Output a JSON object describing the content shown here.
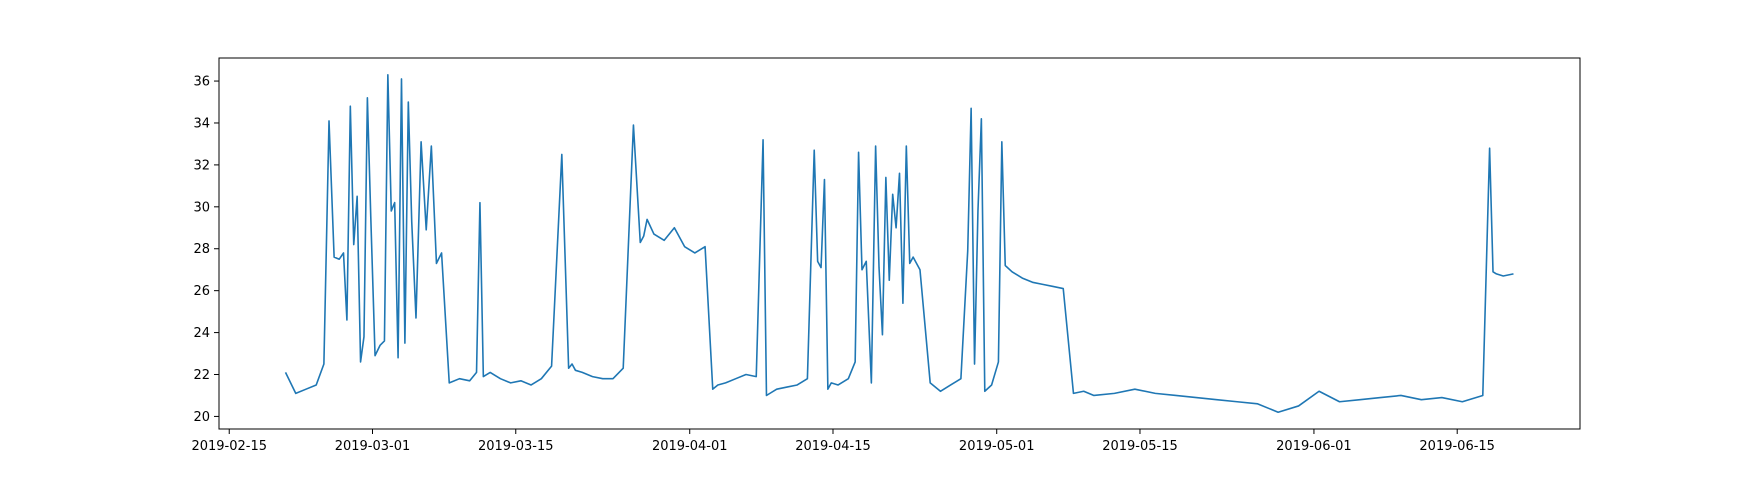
{
  "chart_data": {
    "type": "line",
    "title": "",
    "xlabel": "",
    "ylabel": "",
    "xlim": [
      "2019-02-14",
      "2019-06-27"
    ],
    "ylim": [
      19.4,
      37.1
    ],
    "grid": false,
    "line_color": "#1f77b4",
    "x_ticks": [
      "2019-02-15",
      "2019-03-01",
      "2019-03-15",
      "2019-04-01",
      "2019-04-15",
      "2019-05-01",
      "2019-05-15",
      "2019-06-01",
      "2019-06-15"
    ],
    "y_ticks": [
      20,
      22,
      24,
      26,
      28,
      30,
      32,
      34,
      36
    ],
    "series": [
      {
        "x": [
          "2019-02-20",
          "2019-02-21",
          "2019-02-22",
          "2019-02-23",
          "2019-02-24",
          "2019-02-24",
          "2019-02-25",
          "2019-02-25",
          "2019-02-26",
          "2019-02-26",
          "2019-02-26",
          "2019-02-27",
          "2019-02-27",
          "2019-02-27",
          "2019-02-28",
          "2019-02-28",
          "2019-02-28",
          "2019-03-01",
          "2019-03-01",
          "2019-03-02",
          "2019-03-02",
          "2019-03-02",
          "2019-03-03",
          "2019-03-03",
          "2019-03-03",
          "2019-03-04",
          "2019-03-04",
          "2019-03-04",
          "2019-03-05",
          "2019-03-05",
          "2019-03-06",
          "2019-03-06",
          "2019-03-07",
          "2019-03-07",
          "2019-03-08",
          "2019-03-09",
          "2019-03-10",
          "2019-03-11",
          "2019-03-11",
          "2019-03-11",
          "2019-03-12",
          "2019-03-13",
          "2019-03-14",
          "2019-03-15",
          "2019-03-16",
          "2019-03-17",
          "2019-03-18",
          "2019-03-19",
          "2019-03-20",
          "2019-03-20",
          "2019-03-20",
          "2019-03-21",
          "2019-03-22",
          "2019-03-23",
          "2019-03-24",
          "2019-03-25",
          "2019-03-26",
          "2019-03-27",
          "2019-03-27",
          "2019-03-27",
          "2019-03-28",
          "2019-03-29",
          "2019-03-30",
          "2019-03-31",
          "2019-04-01",
          "2019-04-02",
          "2019-04-03",
          "2019-04-03",
          "2019-04-04",
          "2019-04-05",
          "2019-04-06",
          "2019-04-07",
          "2019-04-08",
          "2019-04-08",
          "2019-04-08",
          "2019-04-09",
          "2019-04-10",
          "2019-04-11",
          "2019-04-12",
          "2019-04-13",
          "2019-04-13",
          "2019-04-13",
          "2019-04-14",
          "2019-04-14",
          "2019-04-14",
          "2019-04-15",
          "2019-04-16",
          "2019-04-17",
          "2019-04-17",
          "2019-04-17",
          "2019-04-18",
          "2019-04-18",
          "2019-04-19",
          "2019-04-19",
          "2019-04-19",
          "2019-04-20",
          "2019-04-20",
          "2019-04-20",
          "2019-04-21",
          "2019-04-21",
          "2019-04-21",
          "2019-04-22",
          "2019-04-22",
          "2019-04-22",
          "2019-04-23",
          "2019-04-24",
          "2019-04-25",
          "2019-04-26",
          "2019-04-27",
          "2019-04-28",
          "2019-04-28",
          "2019-04-28",
          "2019-04-29",
          "2019-04-29",
          "2019-04-29",
          "2019-04-30",
          "2019-05-01",
          "2019-05-01",
          "2019-05-01",
          "2019-05-02",
          "2019-05-03",
          "2019-05-04",
          "2019-05-05",
          "2019-05-06",
          "2019-05-07",
          "2019-05-08",
          "2019-05-09",
          "2019-05-10",
          "2019-05-12",
          "2019-05-14",
          "2019-05-16",
          "2019-05-18",
          "2019-05-20",
          "2019-05-22",
          "2019-05-24",
          "2019-05-26",
          "2019-05-28",
          "2019-05-30",
          "2019-06-01",
          "2019-06-03",
          "2019-06-05",
          "2019-06-07",
          "2019-06-09",
          "2019-06-11",
          "2019-06-13",
          "2019-06-15",
          "2019-06-17",
          "2019-06-18",
          "2019-06-18",
          "2019-06-18",
          "2019-06-19",
          "2019-06-20"
        ],
        "y": [
          22.1,
          21.1,
          21.3,
          21.5,
          22.5,
          34.1,
          27.6,
          27.5,
          27.8,
          24.6,
          34.8,
          28.2,
          30.5,
          22.6,
          23.8,
          35.2,
          29.5,
          22.9,
          23.4,
          23.6,
          36.3,
          29.8,
          30.2,
          22.8,
          36.1,
          23.5,
          35.0,
          29.3,
          24.7,
          33.1,
          28.9,
          32.9,
          27.3,
          27.8,
          21.6,
          21.8,
          21.7,
          22.1,
          30.2,
          21.9,
          22.1,
          21.8,
          21.6,
          21.7,
          21.5,
          21.8,
          22.4,
          32.5,
          22.3,
          22.5,
          22.2,
          22.1,
          21.9,
          21.8,
          21.8,
          22.3,
          33.9,
          28.3,
          28.6,
          29.4,
          28.7,
          28.4,
          29.0,
          28.1,
          27.8,
          28.1,
          21.3,
          21.5,
          21.6,
          21.8,
          22.0,
          21.9,
          33.2,
          21.0,
          21.1,
          21.3,
          21.4,
          21.5,
          21.8,
          32.7,
          27.4,
          27.1,
          31.3,
          21.3,
          21.6,
          21.5,
          21.8,
          22.6,
          32.6,
          27.0,
          27.4,
          21.6,
          32.9,
          27.1,
          23.9,
          31.4,
          26.5,
          30.6,
          29.0,
          31.6,
          25.4,
          32.9,
          27.3,
          27.6,
          27.0,
          21.6,
          21.2,
          21.5,
          21.8,
          27.9,
          34.7,
          22.5,
          29.8,
          34.2,
          21.2,
          21.5,
          22.6,
          33.1,
          27.2,
          26.9,
          26.6,
          26.4,
          26.3,
          26.2,
          26.1,
          21.1,
          21.2,
          21.0,
          21.1,
          21.3,
          21.1,
          21.0,
          20.9,
          20.8,
          20.7,
          20.6,
          20.2,
          20.5,
          21.2,
          20.7,
          20.8,
          20.9,
          21.0,
          20.8,
          20.9,
          20.7,
          21.0,
          32.8,
          26.9,
          26.8,
          26.7,
          26.8
        ]
      }
    ]
  }
}
